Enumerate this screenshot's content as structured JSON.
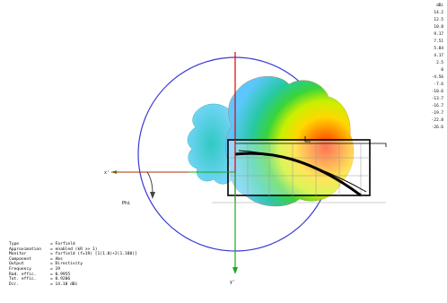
{
  "axes": {
    "x_label": "x'",
    "y_label": "y'",
    "phi_label": "Phi"
  },
  "scale": {
    "unit": "dBi",
    "ticks": [
      "14.2",
      "12.5",
      "10.8",
      "9.17",
      "7.51",
      "5.84",
      "4.17",
      "2.5",
      "0",
      "-4.56",
      "-7.6",
      "-10.6",
      "-13.7",
      "-16.7",
      "-19.7",
      "-22.8",
      "-26.6"
    ]
  },
  "info": [
    {
      "key": "Type",
      "value": "= Farfield"
    },
    {
      "key": "Approximation",
      "value": "= enabled (kR >> 1)"
    },
    {
      "key": "Monitor",
      "value": "= farfield (f=19) [1(1.0)+2(1.180)]"
    },
    {
      "key": "Component",
      "value": "= Abs"
    },
    {
      "key": "Output",
      "value": "= Directivity"
    },
    {
      "key": "Frequency",
      "value": "= 19"
    },
    {
      "key": "Rad. effic.",
      "value": "= 0.9955"
    },
    {
      "key": "Tot. effic.",
      "value": "= 0.9206"
    },
    {
      "key": "Dir.",
      "value": "= 14.18 dBi"
    }
  ],
  "colors": {
    "circle": "#3a3ad6",
    "red_axis": "#e00000",
    "green_axis": "#1aa81a",
    "phi_arrow": "#444444"
  }
}
